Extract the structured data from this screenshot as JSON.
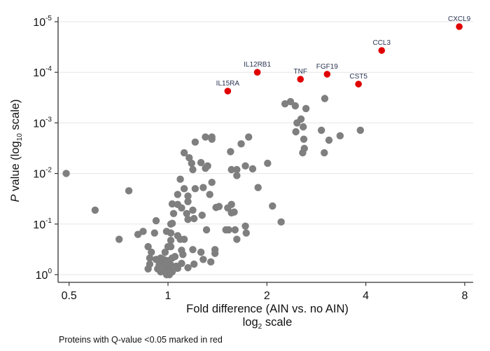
{
  "chart_data": {
    "type": "scatter",
    "xlabel": "Fold difference (AIN vs. no AIN)",
    "xlabel_line2": {
      "pre": "log",
      "sub": "2",
      "post": " scale"
    },
    "ylabel": {
      "italic": "P",
      "pre": " value (log",
      "sub": "10",
      "post": " scale)"
    },
    "note": "Proteins with Q-value <0.05 marked in red",
    "x_scale": "log2",
    "y_scale": "log10-reversed",
    "xlim": [
      0.46,
      8.5
    ],
    "ylim": [
      1,
      1e-05
    ],
    "x_ticks": [
      {
        "value": 0.5,
        "label": "0.5"
      },
      {
        "value": 1,
        "label": "1"
      },
      {
        "value": 2,
        "label": "2"
      },
      {
        "value": 4,
        "label": "4"
      },
      {
        "value": 8,
        "label": "8"
      }
    ],
    "y_ticks": [
      {
        "value": 1e-05,
        "base": "10",
        "exp": "-5"
      },
      {
        "value": 0.0001,
        "base": "10",
        "exp": "-4"
      },
      {
        "value": 0.001,
        "base": "10",
        "exp": "-3"
      },
      {
        "value": 0.01,
        "base": "10",
        "exp": "-2"
      },
      {
        "value": 0.1,
        "base": "10",
        "exp": "-1"
      },
      {
        "value": 1,
        "base": "10",
        "exp": "0"
      }
    ],
    "grid": "horizontal",
    "colors": {
      "not_significant": "#7f7f7f",
      "significant": "#e00000",
      "label": "#2b3553",
      "grid": "#e6e6e6",
      "axis": "#333333"
    },
    "significant": [
      {
        "name": "CXCL9",
        "fold": 7.7,
        "p": 1.25e-05
      },
      {
        "name": "CCL3",
        "fold": 4.47,
        "p": 3.7e-05
      },
      {
        "name": "IL12RB1",
        "fold": 1.87,
        "p": 0.0001
      },
      {
        "name": "TNF",
        "fold": 2.53,
        "p": 0.000137
      },
      {
        "name": "FGF19",
        "fold": 3.05,
        "p": 0.000109
      },
      {
        "name": "CST5",
        "fold": 3.8,
        "p": 0.000171
      },
      {
        "name": "IL15RA",
        "fold": 1.52,
        "p": 0.000235
      }
    ],
    "other": [
      [
        0.49,
        0.01
      ],
      [
        0.76,
        0.022
      ],
      [
        0.6,
        0.053
      ],
      [
        0.71,
        0.2
      ],
      [
        0.81,
        0.16
      ],
      [
        0.84,
        0.14
      ],
      [
        0.91,
        0.15
      ],
      [
        0.92,
        0.086
      ],
      [
        0.87,
        0.28
      ],
      [
        0.89,
        0.36
      ],
      [
        0.88,
        0.47
      ],
      [
        0.92,
        0.5
      ],
      [
        0.88,
        0.62
      ],
      [
        0.87,
        0.77
      ],
      [
        0.99,
        0.14
      ],
      [
        1.02,
        0.1
      ],
      [
        1.03,
        0.097
      ],
      [
        1.02,
        0.15
      ],
      [
        1.02,
        0.21
      ],
      [
        1.02,
        0.28
      ],
      [
        1.07,
        0.17
      ],
      [
        1.09,
        0.2
      ],
      [
        1.12,
        0.2
      ],
      [
        1.04,
        0.062
      ],
      [
        1.03,
        0.04
      ],
      [
        1.07,
        0.041
      ],
      [
        1.1,
        0.048
      ],
      [
        1.15,
        0.028
      ],
      [
        1.15,
        0.036
      ],
      [
        1.12,
        0.02
      ],
      [
        1.07,
        0.026
      ],
      [
        1.09,
        0.013
      ],
      [
        1.19,
        0.053
      ],
      [
        1.2,
        0.078
      ],
      [
        1.15,
        0.081
      ],
      [
        1.14,
        0.062
      ],
      [
        1.27,
        0.067
      ],
      [
        1.21,
        0.02
      ],
      [
        1.28,
        0.019
      ],
      [
        1.34,
        0.026
      ],
      [
        1.36,
        0.015
      ],
      [
        1.31,
        0.13
      ],
      [
        1.19,
        0.32
      ],
      [
        1.26,
        0.36
      ],
      [
        1.28,
        0.5
      ],
      [
        1.35,
        0.56
      ],
      [
        1.39,
        0.32
      ],
      [
        1.39,
        0.38
      ],
      [
        1.1,
        0.33
      ],
      [
        1.11,
        0.4
      ],
      [
        1.1,
        0.6
      ],
      [
        1.2,
        0.62
      ],
      [
        1.15,
        0.73
      ],
      [
        1.07,
        0.75
      ],
      [
        1.4,
        0.047
      ],
      [
        1.43,
        0.045
      ],
      [
        1.52,
        0.048
      ],
      [
        1.56,
        0.041
      ],
      [
        1.56,
        0.06
      ],
      [
        1.59,
        0.058
      ],
      [
        1.5,
        0.13
      ],
      [
        1.53,
        0.13
      ],
      [
        1.6,
        0.13
      ],
      [
        1.72,
        0.11
      ],
      [
        1.73,
        0.15
      ],
      [
        1.62,
        0.2
      ],
      [
        1.88,
        0.019
      ],
      [
        2.08,
        0.044
      ],
      [
        2.21,
        0.091
      ],
      [
        2.01,
        0.0063
      ],
      [
        1.56,
        0.0084
      ],
      [
        1.62,
        0.0084
      ],
      [
        1.62,
        0.011
      ],
      [
        1.72,
        0.0071
      ],
      [
        1.81,
        0.0081
      ],
      [
        1.55,
        0.0037
      ],
      [
        1.67,
        0.0026
      ],
      [
        1.76,
        0.0019
      ],
      [
        1.3,
        0.0019
      ],
      [
        1.36,
        0.0019
      ],
      [
        1.36,
        0.0021
      ],
      [
        1.21,
        0.0024
      ],
      [
        1.12,
        0.0039
      ],
      [
        1.16,
        0.0049
      ],
      [
        1.18,
        0.0063
      ],
      [
        1.19,
        0.0084
      ],
      [
        1.26,
        0.0061
      ],
      [
        1.3,
        0.0079
      ],
      [
        1.32,
        0.0071
      ],
      [
        2.27,
        0.00042
      ],
      [
        2.36,
        0.00038
      ],
      [
        2.44,
        0.00046
      ],
      [
        2.63,
        0.00052
      ],
      [
        3.0,
        0.00033
      ],
      [
        2.54,
        0.00084
      ],
      [
        2.45,
        0.0015
      ],
      [
        2.58,
        0.0012
      ],
      [
        2.47,
        0.001
      ],
      [
        2.93,
        0.0014
      ],
      [
        2.59,
        0.0021
      ],
      [
        3.09,
        0.0022
      ],
      [
        3.34,
        0.0018
      ],
      [
        3.85,
        0.0014
      ],
      [
        2.6,
        0.0032
      ],
      [
        2.57,
        0.0039
      ],
      [
        2.99,
        0.0039
      ],
      [
        0.96,
        0.58
      ],
      [
        0.98,
        0.68
      ],
      [
        1.0,
        0.77
      ],
      [
        1.02,
        0.83
      ],
      [
        0.99,
        0.94
      ],
      [
        0.95,
        0.88
      ],
      [
        0.93,
        0.77
      ],
      [
        0.97,
        0.5
      ],
      [
        1.0,
        0.53
      ],
      [
        1.03,
        0.47
      ],
      [
        1.05,
        0.44
      ],
      [
        1.02,
        0.64
      ],
      [
        0.99,
        1.0
      ],
      [
        1.03,
        0.88
      ],
      [
        1.06,
        0.68
      ],
      [
        0.94,
        0.64
      ],
      [
        0.97,
        0.83
      ],
      [
        1.01,
        1.0
      ],
      [
        0.98,
        0.36
      ],
      [
        1.0,
        0.28
      ],
      [
        0.95,
        0.47
      ]
    ]
  }
}
